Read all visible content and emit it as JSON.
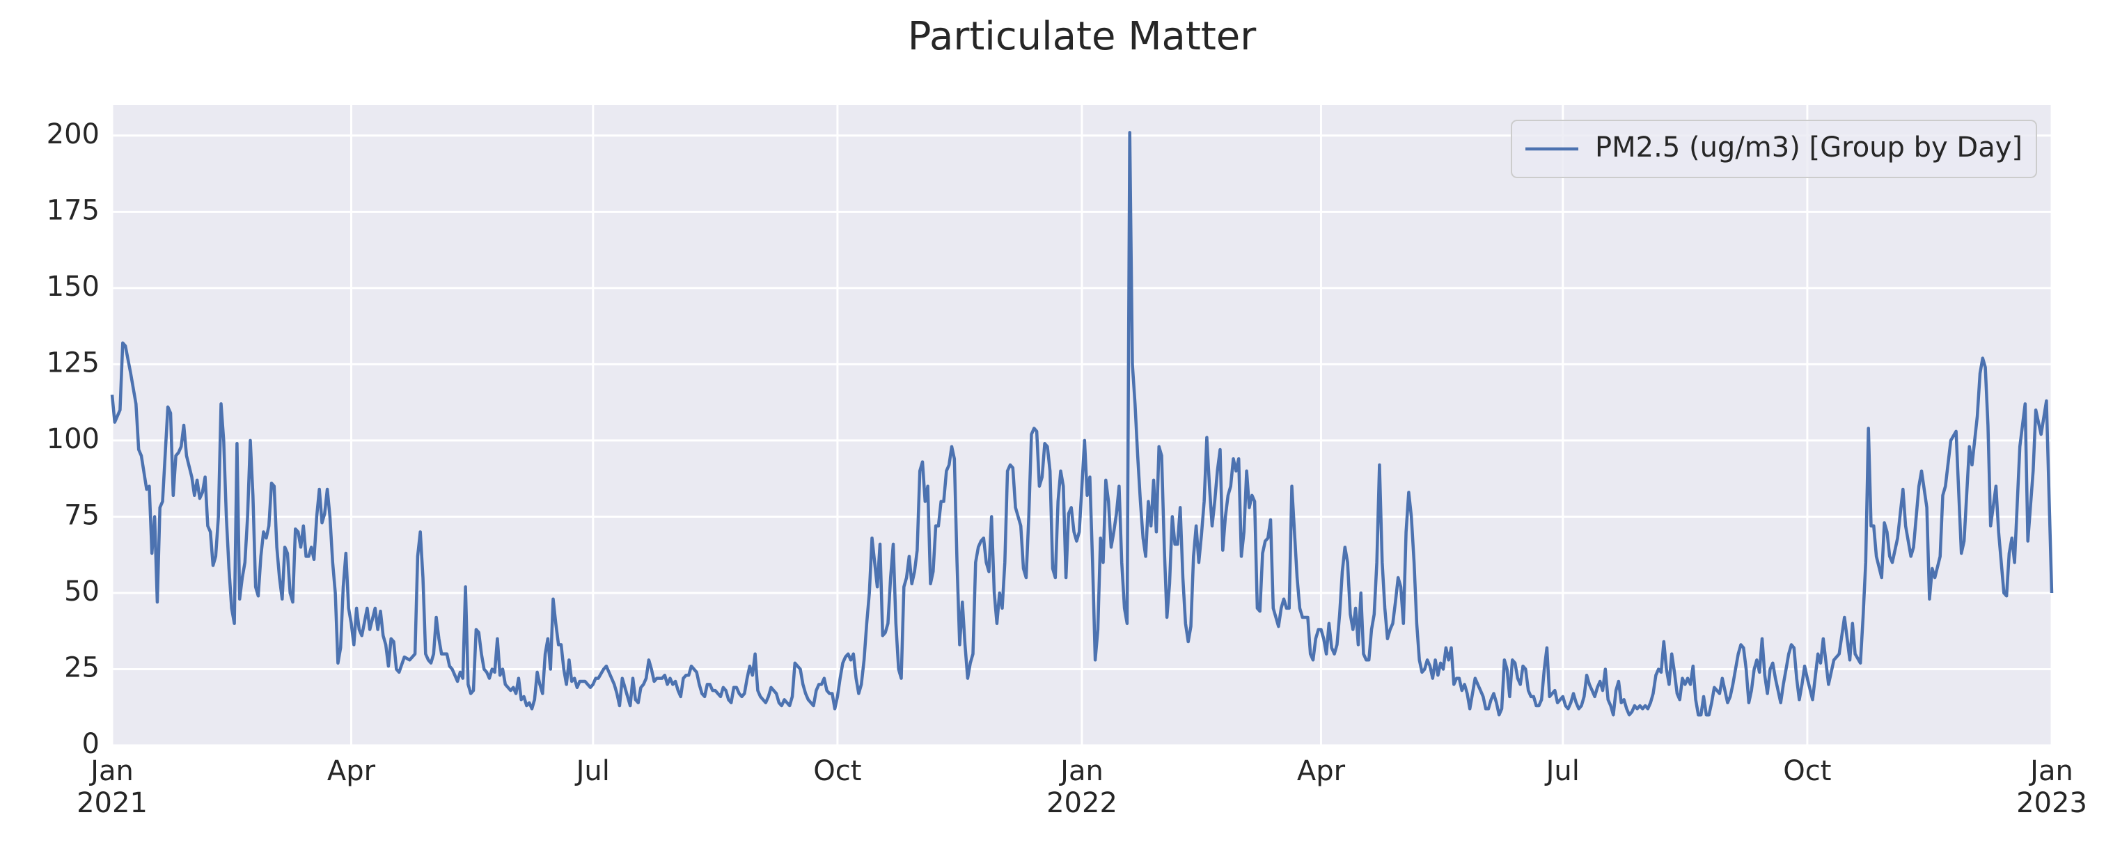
{
  "chart_data": {
    "type": "line",
    "title": "Particulate Matter",
    "x": [
      0,
      1,
      3,
      4,
      5,
      7,
      9,
      10,
      11,
      13,
      14,
      15,
      16,
      17,
      18,
      19,
      21,
      22,
      23,
      24,
      25,
      26,
      27,
      28,
      30,
      31,
      32,
      33,
      34,
      35,
      36,
      37,
      38,
      39,
      40,
      41,
      42,
      43,
      44,
      45,
      46,
      47,
      48,
      49,
      50,
      51,
      52,
      53,
      54,
      55,
      56,
      57,
      58,
      59,
      60,
      61,
      62,
      63,
      64,
      65,
      66,
      67,
      68,
      69,
      70,
      71,
      72,
      73,
      74,
      75,
      76,
      77,
      78,
      79,
      80,
      81,
      82,
      83,
      84,
      85,
      86,
      87,
      88,
      89,
      90,
      91,
      92,
      93,
      94,
      96,
      97,
      99,
      100,
      101,
      102,
      103,
      104,
      105,
      106,
      107,
      108,
      110,
      112,
      114,
      115,
      116,
      117,
      118,
      119,
      120,
      121,
      122,
      123,
      124,
      126,
      127,
      128,
      129,
      130,
      131,
      132,
      133,
      134,
      135,
      136,
      137,
      138,
      139,
      140,
      141,
      142,
      143,
      144,
      145,
      146,
      147,
      148,
      150,
      151,
      152,
      153,
      154,
      155,
      156,
      157,
      158,
      159,
      160,
      161,
      162,
      163,
      164,
      165,
      166,
      167,
      168,
      169,
      170,
      171,
      172,
      173,
      174,
      175,
      176,
      178,
      180,
      181,
      182,
      183,
      185,
      186,
      188,
      189,
      190,
      191,
      192,
      193,
      194,
      195,
      196,
      197,
      198,
      199,
      200,
      201,
      202,
      203,
      204,
      205,
      207,
      208,
      209,
      210,
      211,
      212,
      213,
      214,
      215,
      216,
      217,
      218,
      219,
      220,
      221,
      222,
      223,
      224,
      225,
      226,
      227,
      228,
      229,
      230,
      231,
      232,
      233,
      234,
      235,
      236,
      237,
      238,
      239,
      240,
      241,
      242,
      243,
      244,
      245,
      246,
      247,
      248,
      249,
      250,
      251,
      252,
      253,
      254,
      255,
      256,
      257,
      258,
      259,
      260,
      261,
      262,
      264,
      265,
      266,
      267,
      268,
      269,
      270,
      271,
      272,
      273,
      274,
      275,
      276,
      277,
      278,
      279,
      280,
      281,
      282,
      283,
      284,
      285,
      286,
      287,
      288,
      289,
      290,
      291,
      292,
      293,
      294,
      295,
      296,
      297,
      298,
      299,
      300,
      301,
      302,
      303,
      304,
      305,
      306,
      307,
      308,
      309,
      310,
      311,
      312,
      313,
      314,
      315,
      316,
      317,
      318,
      319,
      320,
      321,
      322,
      323,
      324,
      325,
      326,
      327,
      328,
      329,
      330,
      331,
      332,
      333,
      334,
      335,
      336,
      337,
      338,
      339,
      340,
      341,
      342,
      343,
      344,
      345,
      346,
      347,
      348,
      349,
      350,
      351,
      352,
      353,
      354,
      355,
      356,
      357,
      358,
      359,
      360,
      361,
      362,
      363,
      364,
      365,
      366,
      367,
      368,
      369,
      370,
      371,
      372,
      373,
      374,
      375,
      376,
      377,
      378,
      379,
      380,
      381,
      382,
      383,
      384,
      385,
      386,
      387,
      388,
      389,
      390,
      391,
      392,
      393,
      394,
      395,
      396,
      397,
      398,
      399,
      400,
      401,
      402,
      403,
      404,
      405,
      406,
      407,
      408,
      409,
      410,
      411,
      412,
      413,
      414,
      415,
      416,
      417,
      418,
      419,
      420,
      421,
      422,
      423,
      424,
      425,
      426,
      427,
      428,
      429,
      430,
      431,
      432,
      433,
      434,
      435,
      436,
      437,
      438,
      439,
      440,
      441,
      442,
      443,
      444,
      445,
      446,
      447,
      448,
      449,
      450,
      451,
      452,
      453,
      454,
      455,
      456,
      457,
      458,
      459,
      460,
      461,
      462,
      463,
      464,
      465,
      466,
      467,
      468,
      469,
      470,
      471,
      472,
      473,
      474,
      475,
      476,
      477,
      478,
      479,
      480,
      481,
      482,
      483,
      484,
      485,
      486,
      487,
      488,
      489,
      490,
      491,
      492,
      493,
      494,
      495,
      496,
      497,
      498,
      499,
      500,
      501,
      502,
      503,
      504,
      505,
      506,
      507,
      508,
      509,
      510,
      511,
      512,
      513,
      514,
      515,
      516,
      517,
      518,
      519,
      520,
      521,
      522,
      523,
      524,
      525,
      526,
      527,
      528,
      529,
      530,
      531,
      532,
      533,
      534,
      535,
      536,
      537,
      538,
      539,
      540,
      541,
      542,
      543,
      544,
      545,
      546,
      547,
      548,
      549,
      550,
      551,
      552,
      553,
      554,
      555,
      556,
      557,
      558,
      559,
      560,
      561,
      562,
      563,
      564,
      565,
      566,
      567,
      568,
      569,
      570,
      571,
      572,
      573,
      574,
      575,
      576,
      577,
      578,
      579,
      580,
      581,
      582,
      583,
      584,
      585,
      586,
      587,
      588,
      589,
      590,
      591,
      592,
      593,
      594,
      595,
      596,
      597,
      598,
      599,
      600,
      601,
      602,
      603,
      604,
      605,
      606,
      607,
      608,
      609,
      610,
      611,
      612,
      613,
      614,
      615,
      616,
      617,
      618,
      619,
      620,
      621,
      622,
      623,
      624,
      625,
      626,
      627,
      628,
      629,
      630,
      631,
      632,
      633,
      634,
      635,
      636,
      637,
      638,
      640,
      642,
      643,
      644,
      646,
      648,
      650,
      652,
      654,
      655,
      656,
      658,
      659,
      660,
      661,
      662,
      663,
      664,
      666,
      667,
      668,
      669,
      670,
      672,
      674,
      675,
      677,
      678,
      680,
      681,
      683,
      684,
      685,
      686,
      688,
      689,
      690,
      692,
      694,
      696,
      697,
      699,
      700,
      702,
      703,
      704,
      705,
      706,
      707,
      709,
      710,
      712,
      713,
      714,
      715,
      716,
      718,
      720,
      721,
      723,
      724,
      726,
      728,
      730
    ],
    "series": [
      {
        "name": "PM2.5 (ug/m3) [Group by Day]",
        "color": "#4c72b0",
        "values": [
          115,
          106,
          110,
          132,
          131,
          122,
          112,
          97,
          95,
          84,
          85,
          63,
          75,
          47,
          78,
          80,
          111,
          109,
          82,
          95,
          96,
          98,
          105,
          95,
          88,
          82,
          87,
          81,
          83,
          88,
          72,
          70,
          59,
          62,
          75,
          112,
          100,
          75,
          58,
          45,
          40,
          99,
          48,
          55,
          60,
          75,
          100,
          82,
          52,
          49,
          62,
          70,
          68,
          72,
          86,
          85,
          65,
          55,
          48,
          65,
          63,
          50,
          47,
          71,
          70,
          65,
          72,
          62,
          62,
          65,
          61,
          75,
          84,
          73,
          76,
          84,
          75,
          60,
          50,
          27,
          32,
          52,
          63,
          45,
          40,
          33,
          45,
          38,
          36,
          45,
          38,
          45,
          38,
          44,
          36,
          33,
          26,
          35,
          34,
          25,
          24,
          29,
          28,
          30,
          62,
          70,
          55,
          30,
          28,
          27,
          30,
          42,
          35,
          30,
          30,
          26,
          25,
          23,
          21,
          24,
          22,
          52,
          20,
          17,
          18,
          38,
          37,
          30,
          25,
          24,
          22,
          25,
          24,
          35,
          23,
          25,
          20,
          18,
          19,
          17,
          22,
          15,
          16,
          13,
          14,
          12,
          15,
          24,
          20,
          17,
          30,
          35,
          25,
          48,
          40,
          33,
          33,
          25,
          20,
          28,
          21,
          22,
          19,
          21,
          21,
          19,
          20,
          22,
          22,
          25,
          26,
          22,
          20,
          17,
          13,
          22,
          19,
          16,
          13,
          22,
          15,
          14,
          19,
          20,
          22,
          28,
          25,
          21,
          22,
          22,
          23,
          20,
          22,
          20,
          21,
          18,
          16,
          22,
          23,
          23,
          26,
          25,
          24,
          20,
          17,
          16,
          20,
          20,
          18,
          18,
          17,
          16,
          19,
          18,
          15,
          14,
          19,
          19,
          17,
          16,
          17,
          22,
          26,
          23,
          30,
          18,
          16,
          15,
          14,
          16,
          19,
          18,
          17,
          14,
          13,
          15,
          14,
          13,
          16,
          27,
          26,
          25,
          20,
          17,
          15,
          13,
          18,
          20,
          20,
          22,
          18,
          17,
          17,
          12,
          16,
          22,
          27,
          29,
          30,
          28,
          30,
          22,
          17,
          20,
          28,
          40,
          50,
          68,
          60,
          52,
          66,
          36,
          37,
          40,
          55,
          66,
          40,
          25,
          22,
          52,
          55,
          62,
          53,
          57,
          64,
          90,
          93,
          80,
          85,
          53,
          57,
          72,
          72,
          80,
          80,
          90,
          92,
          98,
          94,
          60,
          33,
          47,
          33,
          22,
          27,
          30,
          60,
          65,
          67,
          68,
          60,
          57,
          75,
          50,
          40,
          50,
          45,
          60,
          90,
          92,
          91,
          78,
          75,
          72,
          58,
          55,
          75,
          102,
          104,
          103,
          85,
          88,
          99,
          98,
          90,
          58,
          55,
          80,
          90,
          85,
          55,
          76,
          78,
          70,
          67,
          70,
          85,
          100,
          82,
          88,
          60,
          28,
          38,
          68,
          60,
          87,
          80,
          65,
          70,
          76,
          85,
          60,
          45,
          40,
          201,
          125,
          112,
          95,
          80,
          68,
          62,
          80,
          72,
          87,
          70,
          98,
          95,
          65,
          42,
          53,
          75,
          66,
          66,
          78,
          55,
          40,
          34,
          39,
          62,
          72,
          60,
          69,
          80,
          101,
          85,
          72,
          80,
          90,
          97,
          64,
          75,
          82,
          85,
          94,
          90,
          94,
          62,
          70,
          90,
          78,
          82,
          80,
          45,
          44,
          63,
          67,
          68,
          74,
          45,
          42,
          39,
          45,
          48,
          45,
          45,
          85,
          70,
          55,
          45,
          42,
          42,
          42,
          30,
          28,
          35,
          38,
          38,
          35,
          30,
          40,
          32,
          30,
          33,
          43,
          57,
          65,
          60,
          43,
          38,
          45,
          33,
          50,
          30,
          28,
          28,
          38,
          43,
          60,
          92,
          60,
          45,
          35,
          38,
          40,
          47,
          55,
          52,
          40,
          70,
          83,
          75,
          60,
          40,
          28,
          24,
          25,
          28,
          26,
          22,
          28,
          23,
          27,
          25,
          32,
          28,
          32,
          20,
          22,
          22,
          18,
          20,
          17,
          12,
          17,
          22,
          20,
          18,
          16,
          12,
          12,
          15,
          17,
          14,
          10,
          12,
          28,
          25,
          16,
          28,
          27,
          22,
          20,
          26,
          25,
          18,
          16,
          16,
          13,
          13,
          15,
          25,
          32,
          16,
          17,
          18,
          14,
          15,
          16,
          13,
          12,
          14,
          17,
          14,
          12,
          13,
          16,
          23,
          20,
          18,
          16,
          19,
          21,
          18,
          25,
          15,
          13,
          10,
          18,
          21,
          14,
          15,
          12,
          10,
          11,
          13,
          12,
          13,
          12,
          13,
          12,
          14,
          17,
          23,
          25,
          24,
          34,
          25,
          20,
          30,
          24,
          17,
          15,
          22,
          20,
          22,
          20,
          26,
          15,
          10,
          10,
          16,
          10,
          10,
          14,
          19,
          18,
          17,
          22,
          18,
          14,
          16,
          20,
          25,
          30,
          33,
          32,
          25,
          14,
          18,
          25,
          28,
          24,
          35,
          23,
          17,
          25,
          27,
          22,
          18,
          14,
          20,
          25,
          30,
          33,
          32,
          22,
          15,
          20,
          26,
          22,
          15,
          30,
          27,
          35,
          20,
          28,
          30,
          42,
          28,
          40,
          30,
          27,
          42,
          60,
          104,
          72,
          72,
          62,
          55,
          73,
          70,
          62,
          60,
          68,
          84,
          72,
          62,
          65,
          85,
          90,
          78,
          48,
          58,
          55,
          62,
          82,
          85,
          100,
          103,
          63,
          67,
          98,
          92,
          108,
          122,
          127,
          124,
          105,
          72,
          85,
          70,
          50,
          49,
          63,
          68,
          60,
          98,
          112,
          67,
          90,
          110,
          102,
          113,
          50
        ]
      }
    ],
    "xlim": [
      0,
      730
    ],
    "xticks": [
      {
        "value": 0,
        "label": "Jan\n2021"
      },
      {
        "value": 90,
        "label": "Apr"
      },
      {
        "value": 181,
        "label": "Jul"
      },
      {
        "value": 273,
        "label": "Oct"
      },
      {
        "value": 365,
        "label": "Jan\n2022"
      },
      {
        "value": 455,
        "label": "Apr"
      },
      {
        "value": 546,
        "label": "Jul"
      },
      {
        "value": 638,
        "label": "Oct"
      },
      {
        "value": 730,
        "label": "Jan\n2023"
      }
    ],
    "ylim": [
      0,
      210
    ],
    "yticks": [
      0,
      25,
      50,
      75,
      100,
      125,
      150,
      175,
      200
    ],
    "grid": true,
    "legend": "upper right"
  }
}
